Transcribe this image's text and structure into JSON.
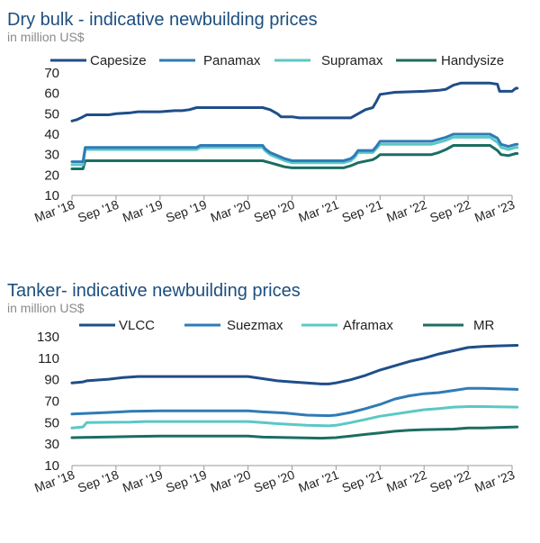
{
  "chart_data": [
    {
      "type": "line",
      "title": "Dry bulk - indicative newbuilding prices",
      "subtitle": "in million US$",
      "ylim": [
        10,
        70
      ],
      "yticks": [
        10,
        20,
        30,
        40,
        50,
        60,
        70
      ],
      "x_range": [
        0,
        60
      ],
      "xticks": [
        {
          "pos": 0,
          "label": "Mar '18"
        },
        {
          "pos": 6,
          "label": "Sep '18"
        },
        {
          "pos": 12,
          "label": "Mar '19"
        },
        {
          "pos": 18,
          "label": "Sep '19"
        },
        {
          "pos": 24,
          "label": "Mar '20"
        },
        {
          "pos": 30,
          "label": "Sep '20"
        },
        {
          "pos": 36,
          "label": "Mar '21"
        },
        {
          "pos": 42,
          "label": "Sep '21"
        },
        {
          "pos": 48,
          "label": "Mar '22"
        },
        {
          "pos": 54,
          "label": "Sep '22"
        },
        {
          "pos": 60,
          "label": "Mar '23"
        }
      ],
      "series": [
        {
          "name": "Capesize",
          "color": "#1f4e89",
          "points": [
            [
              0,
              46.5
            ],
            [
              0.6,
              47
            ],
            [
              1.2,
              48
            ],
            [
              2,
              49.5
            ],
            [
              5,
              49.5
            ],
            [
              6,
              50
            ],
            [
              8,
              50.5
            ],
            [
              9,
              51
            ],
            [
              12,
              51
            ],
            [
              14,
              51.5
            ],
            [
              15,
              51.5
            ],
            [
              16,
              52
            ],
            [
              17,
              53
            ],
            [
              26,
              53
            ],
            [
              27,
              52
            ],
            [
              28,
              50
            ],
            [
              28.5,
              48.5
            ],
            [
              30,
              48.5
            ],
            [
              31,
              48
            ],
            [
              38,
              48
            ],
            [
              39,
              50
            ],
            [
              40,
              52
            ],
            [
              41,
              53
            ],
            [
              41.5,
              56
            ],
            [
              42,
              59.5
            ],
            [
              43,
              60
            ],
            [
              44,
              60.5
            ],
            [
              48,
              61
            ],
            [
              50,
              61.5
            ],
            [
              51,
              62
            ],
            [
              52,
              64
            ],
            [
              53,
              65
            ],
            [
              56,
              65
            ],
            [
              57,
              65
            ],
            [
              58,
              64.5
            ],
            [
              58.3,
              61
            ],
            [
              60,
              61
            ],
            [
              60.5,
              62.5
            ],
            [
              60.7,
              62.5
            ]
          ]
        },
        {
          "name": "Panamax",
          "color": "#2f7bb6",
          "points": [
            [
              0,
              26.5
            ],
            [
              1.5,
              26.5
            ],
            [
              1.8,
              33.5
            ],
            [
              17,
              33.5
            ],
            [
              17.5,
              34.5
            ],
            [
              26,
              34.5
            ],
            [
              26.3,
              33
            ],
            [
              27,
              31
            ],
            [
              28,
              29.5
            ],
            [
              29,
              28
            ],
            [
              30,
              27
            ],
            [
              37,
              27
            ],
            [
              38,
              28
            ],
            [
              38.5,
              29.5
            ],
            [
              39,
              32
            ],
            [
              41,
              32
            ],
            [
              41.5,
              34
            ],
            [
              42,
              36.5
            ],
            [
              49,
              36.5
            ],
            [
              50,
              37.5
            ],
            [
              51,
              38.5
            ],
            [
              52,
              40
            ],
            [
              57,
              40
            ],
            [
              58,
              38
            ],
            [
              58.5,
              35
            ],
            [
              59.5,
              34
            ],
            [
              60.5,
              35
            ],
            [
              60.7,
              35
            ]
          ]
        },
        {
          "name": "Supramax",
          "color": "#5ac8c6",
          "points": [
            [
              0,
              25
            ],
            [
              1.5,
              25
            ],
            [
              1.8,
              32.5
            ],
            [
              17,
              32.5
            ],
            [
              17.5,
              33.5
            ],
            [
              26,
              33.5
            ],
            [
              26.3,
              32
            ],
            [
              27,
              30
            ],
            [
              28,
              28.5
            ],
            [
              29,
              27
            ],
            [
              30,
              26
            ],
            [
              37,
              26
            ],
            [
              38,
              27
            ],
            [
              38.5,
              28.5
            ],
            [
              39,
              31
            ],
            [
              41,
              31
            ],
            [
              41.5,
              33
            ],
            [
              42,
              35
            ],
            [
              49,
              35
            ],
            [
              50,
              36
            ],
            [
              51,
              37
            ],
            [
              52,
              38.5
            ],
            [
              57,
              38.5
            ],
            [
              58,
              36
            ],
            [
              58.5,
              33.5
            ],
            [
              59.5,
              32.5
            ],
            [
              60.5,
              33.5
            ],
            [
              60.7,
              33.5
            ]
          ]
        },
        {
          "name": "Handysize",
          "color": "#1b6e61",
          "points": [
            [
              0,
              23
            ],
            [
              1.5,
              23
            ],
            [
              1.8,
              27
            ],
            [
              17,
              27
            ],
            [
              26,
              27
            ],
            [
              27,
              26
            ],
            [
              28,
              25
            ],
            [
              29,
              24
            ],
            [
              30,
              23.5
            ],
            [
              37,
              23.5
            ],
            [
              38,
              24.5
            ],
            [
              39,
              26
            ],
            [
              41,
              27.5
            ],
            [
              41.5,
              28.5
            ],
            [
              42,
              30
            ],
            [
              49,
              30
            ],
            [
              50,
              31
            ],
            [
              51,
              32.5
            ],
            [
              52,
              34.5
            ],
            [
              57,
              34.5
            ],
            [
              58,
              32
            ],
            [
              58.5,
              30
            ],
            [
              59.5,
              29.5
            ],
            [
              60.5,
              30.5
            ],
            [
              60.7,
              30.5
            ]
          ]
        }
      ]
    },
    {
      "type": "line",
      "title": "Tanker- indicative newbuilding prices",
      "subtitle": "in million US$",
      "ylim": [
        10,
        130
      ],
      "yticks": [
        10,
        30,
        50,
        70,
        90,
        110,
        130
      ],
      "x_range": [
        0,
        60
      ],
      "xticks": [
        {
          "pos": 0,
          "label": "Mar '18"
        },
        {
          "pos": 6,
          "label": "Sep '18"
        },
        {
          "pos": 12,
          "label": "Mar '19"
        },
        {
          "pos": 18,
          "label": "Sep '19"
        },
        {
          "pos": 24,
          "label": "Mar '20"
        },
        {
          "pos": 30,
          "label": "Sep '20"
        },
        {
          "pos": 36,
          "label": "Mar '21"
        },
        {
          "pos": 42,
          "label": "Sep '21"
        },
        {
          "pos": 48,
          "label": "Mar '22"
        },
        {
          "pos": 54,
          "label": "Sep '22"
        },
        {
          "pos": 60,
          "label": "Mar '23"
        }
      ],
      "series": [
        {
          "name": "VLCC",
          "color": "#1f4e89",
          "points": [
            [
              0,
              87
            ],
            [
              1.5,
              88
            ],
            [
              2,
              89
            ],
            [
              5,
              90.5
            ],
            [
              7,
              92
            ],
            [
              9,
              93
            ],
            [
              12,
              93
            ],
            [
              24,
              93
            ],
            [
              26,
              91
            ],
            [
              28,
              89
            ],
            [
              30,
              88
            ],
            [
              32,
              87
            ],
            [
              34,
              86
            ],
            [
              35,
              86
            ],
            [
              36,
              87
            ],
            [
              38,
              90
            ],
            [
              40,
              94
            ],
            [
              42,
              99
            ],
            [
              44,
              103
            ],
            [
              46,
              107
            ],
            [
              48,
              110
            ],
            [
              50,
              114
            ],
            [
              52,
              117
            ],
            [
              54,
              120
            ],
            [
              56,
              121
            ],
            [
              58,
              121.5
            ],
            [
              60.7,
              122
            ]
          ]
        },
        {
          "name": "Suezmax",
          "color": "#2f7bb6",
          "points": [
            [
              0,
              58
            ],
            [
              5,
              59.5
            ],
            [
              8,
              60.5
            ],
            [
              12,
              61
            ],
            [
              24,
              61
            ],
            [
              26,
              60
            ],
            [
              29,
              59
            ],
            [
              32,
              57
            ],
            [
              35,
              56.5
            ],
            [
              36,
              57
            ],
            [
              38,
              59.5
            ],
            [
              40,
              63
            ],
            [
              42,
              67
            ],
            [
              44,
              72
            ],
            [
              46,
              75
            ],
            [
              48,
              77
            ],
            [
              50,
              78
            ],
            [
              52,
              80
            ],
            [
              54,
              82
            ],
            [
              56,
              82
            ],
            [
              58,
              81.5
            ],
            [
              60.7,
              81
            ]
          ]
        },
        {
          "name": "Aframax",
          "color": "#5ac8c6",
          "points": [
            [
              0,
              45
            ],
            [
              1.5,
              46
            ],
            [
              2,
              50
            ],
            [
              8,
              50.5
            ],
            [
              10,
              51
            ],
            [
              24,
              51
            ],
            [
              26,
              50
            ],
            [
              28,
              49
            ],
            [
              32,
              47.5
            ],
            [
              35,
              47
            ],
            [
              36,
              47.5
            ],
            [
              38,
              50
            ],
            [
              40,
              53
            ],
            [
              42,
              56
            ],
            [
              44,
              58
            ],
            [
              46,
              60
            ],
            [
              48,
              62
            ],
            [
              50,
              63
            ],
            [
              52,
              64.5
            ],
            [
              54,
              65
            ],
            [
              56,
              65
            ],
            [
              60.7,
              64.5
            ]
          ]
        },
        {
          "name": "MR",
          "color": "#1b6e61",
          "points": [
            [
              0,
              36
            ],
            [
              8,
              37
            ],
            [
              12,
              37.5
            ],
            [
              24,
              37.5
            ],
            [
              26,
              36.5
            ],
            [
              30,
              36
            ],
            [
              34,
              35.5
            ],
            [
              36,
              36
            ],
            [
              38,
              37.5
            ],
            [
              40,
              39
            ],
            [
              42,
              40.5
            ],
            [
              44,
              42
            ],
            [
              46,
              43
            ],
            [
              48,
              43.5
            ],
            [
              52,
              44
            ],
            [
              54,
              45
            ],
            [
              56,
              45
            ],
            [
              58,
              45.5
            ],
            [
              60.7,
              46
            ]
          ]
        }
      ]
    }
  ]
}
